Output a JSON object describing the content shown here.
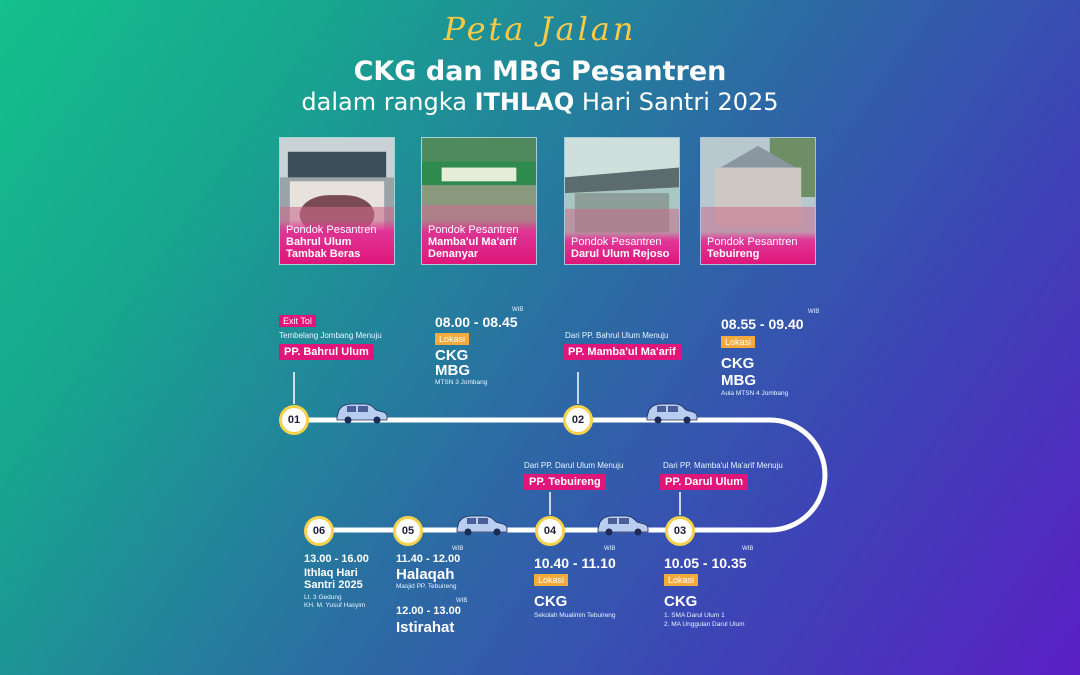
{
  "header": {
    "script_title": "Peta Jalan",
    "main_title": "CKG dan MBG Pesantren",
    "sub_prefix": "dalam rangka ",
    "sub_bold": "ITHLAQ",
    "sub_suffix": " Hari Santri 2025"
  },
  "cards": [
    {
      "line1": "Pondok Pesantren",
      "line2": "Bahrul Ulum",
      "line3": "Tambak Beras"
    },
    {
      "line1": "Pondok Pesantren",
      "line2": "Mamba'ul Ma'arif",
      "line3": "Denanyar"
    },
    {
      "line1": "Pondok Pesantren",
      "line2": "Darul Ulum Rejoso",
      "line3": ""
    },
    {
      "line1": "Pondok Pesantren",
      "line2": "Tebuireng",
      "line3": ""
    }
  ],
  "nodes": [
    "01",
    "02",
    "03",
    "04",
    "05",
    "06"
  ],
  "stop1": {
    "exit": "Exit Tol",
    "route": "Tembelang Jombang Menuju",
    "dest": "PP. Bahrul Ulum"
  },
  "event1": {
    "wib": "WIB",
    "time": "08.00 - 08.45",
    "loc": "Lokasi",
    "a": "CKG",
    "b": "MBG",
    "place": "MTSN 3 Jombang"
  },
  "stop2": {
    "route": "Dari PP. Bahrul Ulum Menuju",
    "dest": "PP. Mamba'ul Ma'arif"
  },
  "event2": {
    "wib": "WIB",
    "time": "08.55 - 09.40",
    "loc": "Lokasi",
    "a": "CKG",
    "b": "MBG",
    "place": "Aula MTSN 4 Jombang"
  },
  "stop3": {
    "route": "Dari PP. Mamba'ul Ma'arif Menuju",
    "dest": "PP. Darul Ulum"
  },
  "event3": {
    "wib": "WIB",
    "time": "10.05 - 10.35",
    "loc": "Lokasi",
    "a": "CKG",
    "place1": "1. SMA Darul Ulum 1",
    "place2": "2. MA Unggulan Darul Ulum"
  },
  "stop4": {
    "route": "Dari PP. Darul Ulum Menuju",
    "dest": "PP. Tebuireng"
  },
  "event4": {
    "wib": "WIB",
    "time": "10.40 - 11.10",
    "loc": "Lokasi",
    "a": "CKG",
    "place": "Sekolah Mualimin Tebuireng"
  },
  "event5": {
    "wib": "WIB",
    "time": "11.40 - 12.00",
    "title": "Halaqah",
    "place": "Masjid PP. Tebuireng",
    "wib2": "WIB",
    "time2": "12.00 - 13.00",
    "title2": "Istirahat"
  },
  "event6": {
    "time": "13.00 - 16.00",
    "title1": "Ithlaq Hari",
    "title2": "Santri 2025",
    "place1": "Lt. 3 Gedung",
    "place2": "KH. M. Yusuf Hasyim"
  },
  "colors": {
    "accent_pink": "#e0167a",
    "accent_orange": "#f4a93b",
    "script_gold": "#f7c948"
  }
}
